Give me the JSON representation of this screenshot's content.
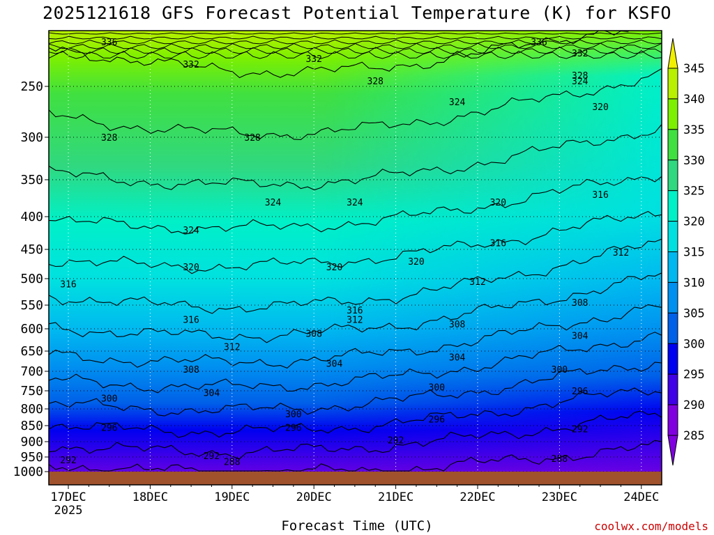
{
  "chart_data": {
    "type": "heatmap",
    "title": "2025121618 GFS Forecast Potential Temperature (K) for KSFO",
    "xlabel": "Forecast Time (UTC)",
    "ylabel": "",
    "x_ticks": [
      "17DEC",
      "18DEC",
      "19DEC",
      "20DEC",
      "21DEC",
      "22DEC",
      "23DEC",
      "24DEC"
    ],
    "x_year_label": "2025",
    "y_ticks": [
      250,
      300,
      350,
      400,
      450,
      500,
      550,
      600,
      650,
      700,
      750,
      800,
      850,
      900,
      950,
      1000
    ],
    "ylim": [
      200,
      1000
    ],
    "colorbar_ticks": [
      345,
      340,
      335,
      330,
      325,
      320,
      315,
      310,
      305,
      300,
      295,
      290,
      285
    ],
    "colorbar_colors": [
      "#f0f000",
      "#b8f000",
      "#7cf000",
      "#40e040",
      "#30d880",
      "#00f0c8",
      "#00e0e0",
      "#00b8f0",
      "#0090f0",
      "#0060e8",
      "#0000f0",
      "#4000e8",
      "#8000e0"
    ],
    "surface_color": "#a0522d",
    "contour_levels": [
      288,
      292,
      296,
      300,
      304,
      308,
      312,
      316,
      320,
      324,
      328,
      332,
      336
    ],
    "contour_labels": [
      {
        "text": "336",
        "time": "17DEC 12z",
        "p": 210
      },
      {
        "text": "336",
        "time": "22DEC 18z",
        "p": 210
      },
      {
        "text": "332",
        "time": "18DEC 12z",
        "p": 230
      },
      {
        "text": "332",
        "time": "20DEC 00z",
        "p": 225
      },
      {
        "text": "332",
        "time": "23DEC 06z",
        "p": 220
      },
      {
        "text": "328",
        "time": "17DEC 12z",
        "p": 300
      },
      {
        "text": "328",
        "time": "19DEC 06z",
        "p": 300
      },
      {
        "text": "328",
        "time": "20DEC 18z",
        "p": 245
      },
      {
        "text": "328",
        "time": "23DEC 06z",
        "p": 240
      },
      {
        "text": "324",
        "time": "18DEC 12z",
        "p": 420
      },
      {
        "text": "324",
        "time": "19DEC 12z",
        "p": 380
      },
      {
        "text": "324",
        "time": "20DEC 12z",
        "p": 380
      },
      {
        "text": "324",
        "time": "21DEC 18z",
        "p": 265
      },
      {
        "text": "324",
        "time": "23DEC 06z",
        "p": 245
      },
      {
        "text": "320",
        "time": "18DEC 12z",
        "p": 480
      },
      {
        "text": "320",
        "time": "20DEC 06z",
        "p": 480
      },
      {
        "text": "320",
        "time": "21DEC 06z",
        "p": 470
      },
      {
        "text": "320",
        "time": "22DEC 06z",
        "p": 380
      },
      {
        "text": "320",
        "time": "23DEC 12z",
        "p": 270
      },
      {
        "text": "316",
        "time": "17DEC 00z",
        "p": 510
      },
      {
        "text": "316",
        "time": "18DEC 12z",
        "p": 580
      },
      {
        "text": "316",
        "time": "20DEC 12z",
        "p": 560
      },
      {
        "text": "316",
        "time": "22DEC 06z",
        "p": 440
      },
      {
        "text": "316",
        "time": "23DEC 12z",
        "p": 370
      },
      {
        "text": "312",
        "time": "19DEC 00z",
        "p": 640
      },
      {
        "text": "312",
        "time": "20DEC 12z",
        "p": 580
      },
      {
        "text": "312",
        "time": "22DEC 00z",
        "p": 505
      },
      {
        "text": "312",
        "time": "23DEC 18z",
        "p": 455
      },
      {
        "text": "308",
        "time": "18DEC 12z",
        "p": 695
      },
      {
        "text": "308",
        "time": "20DEC 00z",
        "p": 610
      },
      {
        "text": "308",
        "time": "21DEC 18z",
        "p": 590
      },
      {
        "text": "308",
        "time": "23DEC 06z",
        "p": 545
      },
      {
        "text": "304",
        "time": "18DEC 18z",
        "p": 755
      },
      {
        "text": "304",
        "time": "20DEC 06z",
        "p": 680
      },
      {
        "text": "304",
        "time": "21DEC 18z",
        "p": 665
      },
      {
        "text": "304",
        "time": "23DEC 06z",
        "p": 615
      },
      {
        "text": "300",
        "time": "17DEC 12z",
        "p": 770
      },
      {
        "text": "300",
        "time": "19DEC 18z",
        "p": 815
      },
      {
        "text": "300",
        "time": "21DEC 12z",
        "p": 740
      },
      {
        "text": "300",
        "time": "23DEC 00z",
        "p": 695
      },
      {
        "text": "296",
        "time": "17DEC 12z",
        "p": 855
      },
      {
        "text": "296",
        "time": "19DEC 18z",
        "p": 855
      },
      {
        "text": "296",
        "time": "21DEC 12z",
        "p": 830
      },
      {
        "text": "296",
        "time": "23DEC 06z",
        "p": 750
      },
      {
        "text": "292",
        "time": "17DEC 00z",
        "p": 960
      },
      {
        "text": "292",
        "time": "18DEC 18z",
        "p": 945
      },
      {
        "text": "292",
        "time": "21DEC 00z",
        "p": 895
      },
      {
        "text": "292",
        "time": "23DEC 06z",
        "p": 860
      },
      {
        "text": "288",
        "time": "19DEC 00z",
        "p": 965
      },
      {
        "text": "288",
        "time": "23DEC 00z",
        "p": 955
      }
    ]
  },
  "credit": "coolwx.com/models"
}
